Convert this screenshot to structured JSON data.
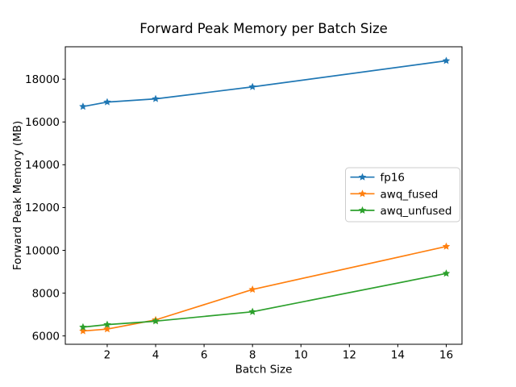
{
  "figure": {
    "title": "Forward Peak Memory per Batch Size",
    "xlabel": "Batch Size",
    "ylabel": "Forward Peak Memory (MB)"
  },
  "chart_data": {
    "type": "line",
    "title": "Forward Peak Memory per Batch Size",
    "xlabel": "Batch Size",
    "ylabel": "Forward Peak Memory (MB)",
    "x": [
      1,
      2,
      4,
      8,
      16
    ],
    "series": [
      {
        "name": "fp16",
        "color": "#1f77b4",
        "values": [
          16720,
          16930,
          17080,
          17640,
          18860
        ]
      },
      {
        "name": "awq_fused",
        "color": "#ff7f0e",
        "values": [
          6230,
          6320,
          6750,
          8170,
          10180
        ]
      },
      {
        "name": "awq_unfused",
        "color": "#2ca02c",
        "values": [
          6410,
          6530,
          6690,
          7130,
          8920
        ]
      }
    ],
    "marker": "star",
    "line_width_pt": 1.5,
    "xticks": [
      2,
      4,
      6,
      8,
      10,
      12,
      14,
      16
    ],
    "yticks": [
      6000,
      8000,
      10000,
      12000,
      14000,
      16000,
      18000
    ],
    "xlim": [
      0.27,
      16.65
    ],
    "ylim": [
      5610,
      19515
    ],
    "grid": false,
    "legend": {
      "position": "center-right",
      "entries": [
        "fp16",
        "awq_fused",
        "awq_unfused"
      ],
      "border_color": "#cccccc"
    },
    "axis_color": "#000000",
    "background": "#ffffff"
  }
}
